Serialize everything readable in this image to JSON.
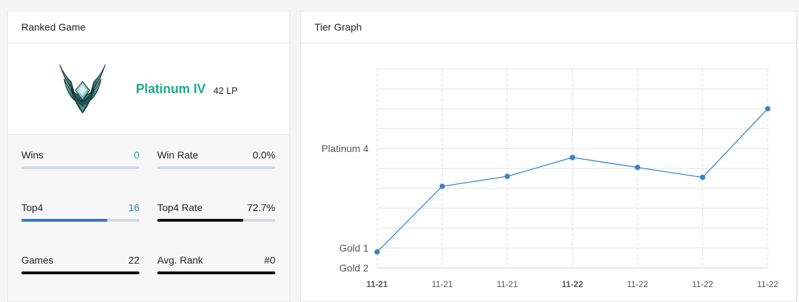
{
  "ranked": {
    "title": "Ranked Game",
    "emblem": "platinum-emblem-icon",
    "tier": "Platinum IV",
    "lp": "42 LP",
    "stats": [
      {
        "id": "wins",
        "label": "Wins",
        "value": "0",
        "value_color": "#1fa88a",
        "bar_fraction": 0,
        "bar_color": "#1fa88a"
      },
      {
        "id": "win-rate",
        "label": "Win Rate",
        "value": "0.0%",
        "value_color": "#222222",
        "bar_fraction": 0,
        "bar_color": "#111111"
      },
      {
        "id": "top4",
        "label": "Top4",
        "value": "16",
        "value_color": "#2d7bc8",
        "bar_fraction": 0.727,
        "bar_color": "#2d7bc8"
      },
      {
        "id": "top4-rate",
        "label": "Top4 Rate",
        "value": "72.7%",
        "value_color": "#222222",
        "bar_fraction": 0.727,
        "bar_color": "#111111"
      },
      {
        "id": "games",
        "label": "Games",
        "value": "22",
        "value_color": "#222222",
        "bar_fraction": 1,
        "bar_color": "#111111"
      },
      {
        "id": "avg-rank",
        "label": "Avg. Rank",
        "value": "#0",
        "value_color": "#222222",
        "bar_fraction": 1,
        "bar_color": "#111111"
      }
    ]
  },
  "tier_graph": {
    "title": "Tier Graph"
  },
  "chart_data": {
    "type": "line",
    "title": "Tier Graph",
    "categories": [
      "11-21",
      "11-21",
      "11-21",
      "11-22",
      "11-22",
      "11-22",
      "11-22"
    ],
    "bold_categories": [
      0,
      3
    ],
    "y_tick_labels": [
      "Gold 2",
      "Gold 1",
      "Platinum 4"
    ],
    "y_tick_values": [
      -1,
      0,
      5
    ],
    "values": [
      -0.2,
      3.1,
      3.6,
      4.55,
      4.05,
      3.55,
      7.0
    ],
    "ylim": [
      -1,
      9
    ],
    "grid": true,
    "line_color": "#3d84c6",
    "legend": "none"
  }
}
